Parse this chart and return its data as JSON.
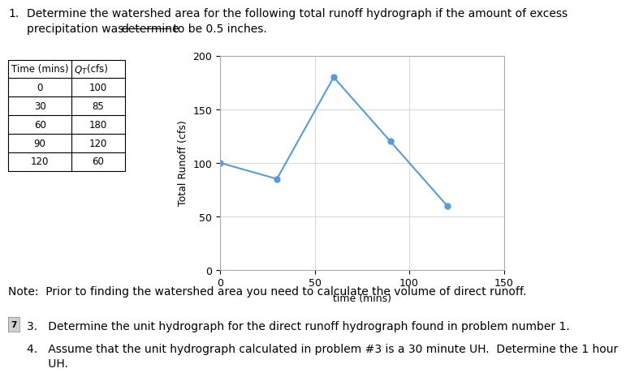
{
  "table_data": [
    [
      0,
      100
    ],
    [
      30,
      85
    ],
    [
      60,
      180
    ],
    [
      90,
      120
    ],
    [
      120,
      60
    ]
  ],
  "time": [
    0,
    30,
    60,
    90,
    120
  ],
  "runoff": [
    100,
    85,
    180,
    120,
    60
  ],
  "xlabel": "time (mins)",
  "ylabel": "Total Runoff (cfs)",
  "xlim": [
    0,
    150
  ],
  "ylim": [
    0,
    200
  ],
  "xticks": [
    0,
    50,
    100,
    150
  ],
  "yticks": [
    0,
    50,
    100,
    150,
    200
  ],
  "line_color": "#5b9bd5",
  "marker_color": "#5b9bd5",
  "note_text": "Note:  Prior to finding the watershed area you need to calculate the volume of direct runoff.",
  "item3_text": "3.   Determine the unit hydrograph for the direct runoff hydrograph found in problem number 1.",
  "item4_line1": "4.   Assume that the unit hydrograph calculated in problem #3 is a 30 minute UH.  Determine the 1 hour",
  "item4_line2": "      UH.",
  "background_color": "#ffffff",
  "grid_color": "#d9d9d9",
  "font_size_body": 10,
  "font_size_axis": 9
}
